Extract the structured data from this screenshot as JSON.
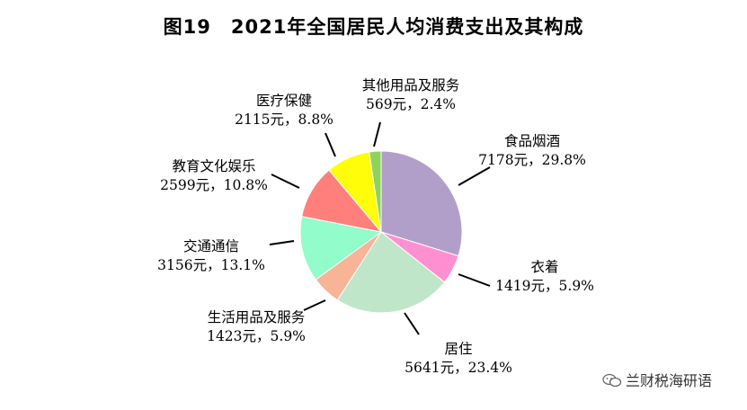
{
  "title": {
    "fig": "图19",
    "text": "2021年全国居民人均消费支出及其构成"
  },
  "watermark": {
    "text": "兰财税海研语",
    "icon": "wechat-icon"
  },
  "chart_data": {
    "type": "pie",
    "title": "2021年全国居民人均消费支出及其构成",
    "start_angle_deg": 0,
    "direction": "clockwise",
    "slices": [
      {
        "name": "食品烟酒",
        "value": 7178,
        "percent": 29.8,
        "label": "7178元，29.8%",
        "color": "#b29fc9"
      },
      {
        "name": "衣着",
        "value": 1419,
        "percent": 5.9,
        "label": "1419元，5.9%",
        "color": "#ff8fd0"
      },
      {
        "name": "居住",
        "value": 5641,
        "percent": 23.4,
        "label": "5641元，23.4%",
        "color": "#bfe6c8"
      },
      {
        "name": "生活用品及服务",
        "value": 1423,
        "percent": 5.9,
        "label": "1423元，5.9%",
        "color": "#f8b496"
      },
      {
        "name": "交通通信",
        "value": 3156,
        "percent": 13.1,
        "label": "3156元，13.1%",
        "color": "#93fccb"
      },
      {
        "name": "教育文化娱乐",
        "value": 2599,
        "percent": 10.8,
        "label": "2599元，10.8%",
        "color": "#fe7f7c"
      },
      {
        "name": "医疗保健",
        "value": 2115,
        "percent": 8.8,
        "label": "2115元，8.8%",
        "color": "#fffe08"
      },
      {
        "name": "其他用品及服务",
        "value": 569,
        "percent": 2.4,
        "label": "569元，2.4%",
        "color": "#8fd45a"
      }
    ]
  }
}
